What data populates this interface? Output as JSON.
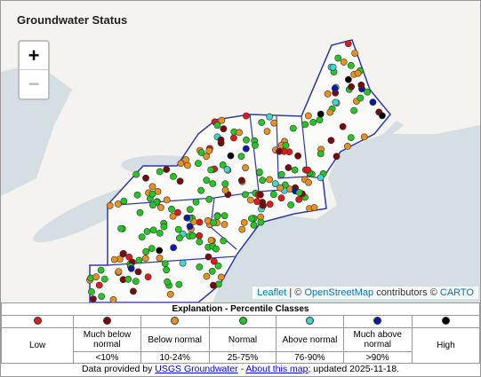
{
  "title": "Groundwater Status",
  "zoom_in": "+",
  "zoom_out": "−",
  "attribution": {
    "leaflet": "Leaflet",
    "sep": "| ©",
    "osm": "OpenStreetMap",
    "contrib": "contributors ©",
    "carto": "CARTO"
  },
  "legend": {
    "title": "Explanation - Percentile Classes",
    "classes": [
      {
        "name": "Low",
        "color": "#e0191c"
      },
      {
        "name": "Much below normal",
        "range": "<10%",
        "color": "#7a0a0a"
      },
      {
        "name": "Below normal",
        "range": "10-24%",
        "color": "#e8901e"
      },
      {
        "name": "Normal",
        "range": "25-75%",
        "color": "#22c722"
      },
      {
        "name": "Above normal",
        "range": "76-90%",
        "color": "#3fd6d0"
      },
      {
        "name": "Much above normal",
        "range": ">90%",
        "color": "#0a1aa8"
      },
      {
        "name": "High",
        "color": "#000000"
      }
    ]
  },
  "footer": {
    "prefix": "Data provided by",
    "source": "USGS Groundwater",
    "sep": "-",
    "about": "About this map",
    "suffix": "; updated 2025-11-18."
  }
}
